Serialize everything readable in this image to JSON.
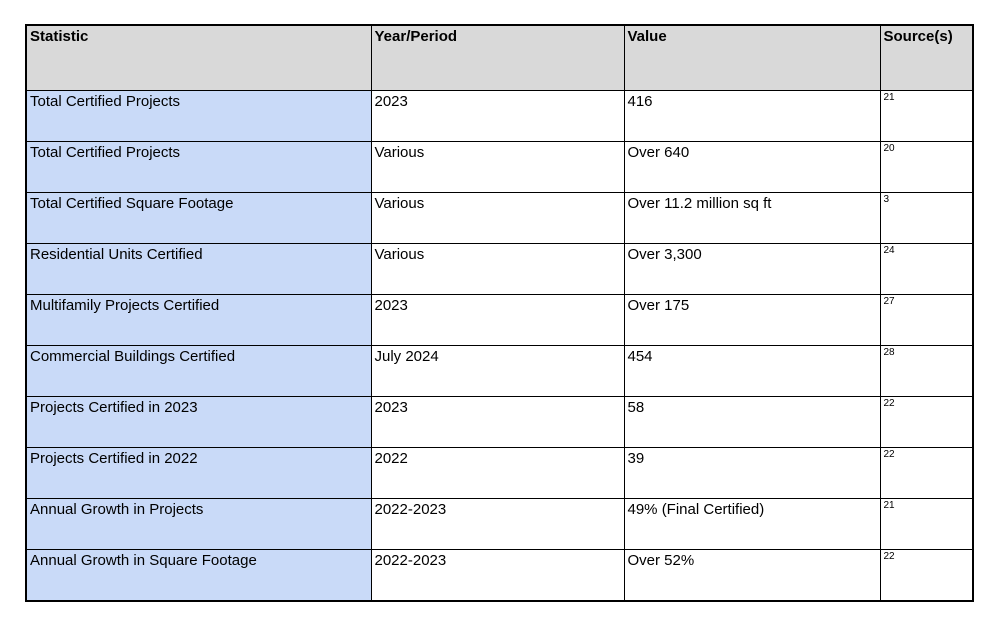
{
  "colors": {
    "header_bg": "#d9d9d9",
    "statistic_col_bg": "#c9daf8",
    "border": "#000000",
    "page_bg": "#ffffff"
  },
  "table": {
    "columns": [
      "Statistic",
      "Year/Period",
      "Value",
      "Source(s)"
    ],
    "rows": [
      {
        "statistic": "Total Certified Projects",
        "year_period": "2023",
        "value": "416",
        "source": "21"
      },
      {
        "statistic": "Total Certified Projects",
        "year_period": "Various",
        "value": "Over 640",
        "source": "20"
      },
      {
        "statistic": "Total Certified Square Footage",
        "year_period": "Various",
        "value": "Over 11.2 million sq ft",
        "source": "3"
      },
      {
        "statistic": "Residential Units Certified",
        "year_period": "Various",
        "value": "Over 3,300",
        "source": "24"
      },
      {
        "statistic": "Multifamily Projects Certified",
        "year_period": "2023",
        "value": "Over 175",
        "source": "27"
      },
      {
        "statistic": "Commercial Buildings Certified",
        "year_period": "July 2024",
        "value": "454",
        "source": "28"
      },
      {
        "statistic": "Projects Certified in 2023",
        "year_period": "2023",
        "value": "58",
        "source": "22"
      },
      {
        "statistic": "Projects Certified in 2022",
        "year_period": "2022",
        "value": "39",
        "source": "22"
      },
      {
        "statistic": "Annual Growth in Projects",
        "year_period": "2022-2023",
        "value": "49% (Final Certified)",
        "source": "21"
      },
      {
        "statistic": "Annual Growth in Square Footage",
        "year_period": "2022-2023",
        "value": "Over 52%",
        "source": "22"
      }
    ]
  }
}
